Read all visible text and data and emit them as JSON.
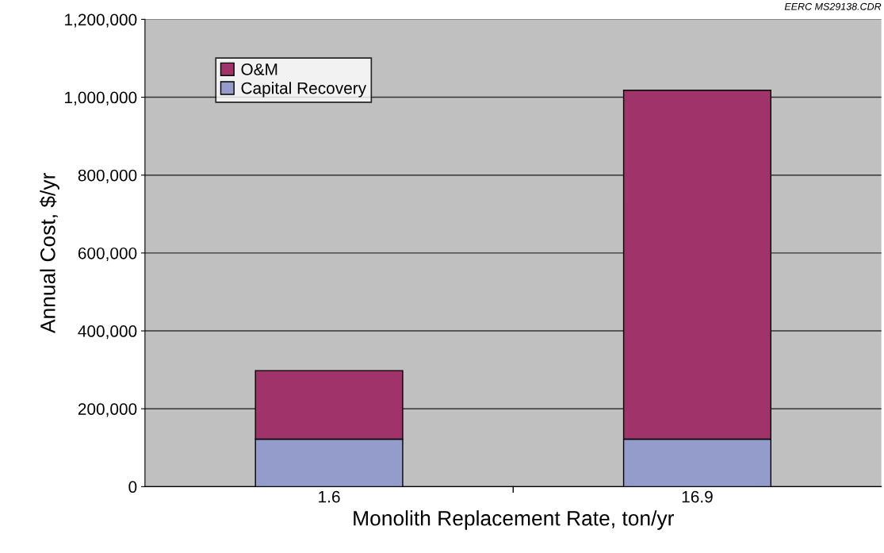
{
  "chart_data": {
    "type": "bar",
    "stacked": true,
    "categories": [
      "1.6",
      "16.9"
    ],
    "series": [
      {
        "name": "Capital Recovery",
        "color": "#949ccc",
        "values": [
          122000,
          122000
        ]
      },
      {
        "name": "O&M",
        "color": "#a0336a",
        "values": [
          176000,
          896000
        ]
      }
    ],
    "xlabel": "Monolith Replacement Rate, ton/yr",
    "ylabel": "Annual Cost, $/yr",
    "ylim": [
      0,
      1200000
    ],
    "yticks": [
      {
        "value": 0,
        "label": "0"
      },
      {
        "value": 200000,
        "label": "200,000"
      },
      {
        "value": 400000,
        "label": "400,000"
      },
      {
        "value": 600000,
        "label": "600,000"
      },
      {
        "value": 800000,
        "label": "800,000"
      },
      {
        "value": 1000000,
        "label": "1,000,000"
      },
      {
        "value": 1200000,
        "label": "1,200,000"
      }
    ],
    "grid": "y",
    "legend": "top left",
    "annotations": [
      "EERC MS29138.CDR"
    ]
  }
}
